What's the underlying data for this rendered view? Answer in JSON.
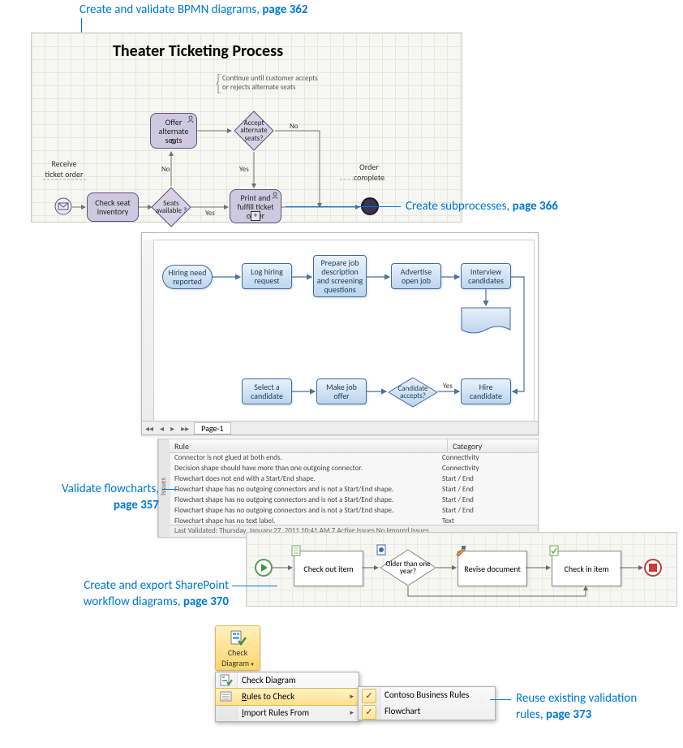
{
  "callout1": {
    "text": "Create and validate BPMN diagrams, ",
    "page": "page 362"
  },
  "callout2": {
    "text": "Create subprocesses, ",
    "page": "page 366"
  },
  "callout3": {
    "text": "Validate flowcharts,",
    "page": "page 357"
  },
  "callout4": {
    "text": "Create and export SharePoint",
    "text2": "workflow diagrams, ",
    "page": "page 370"
  },
  "callout5": {
    "text": "Reuse existing validation",
    "text2": "rules, ",
    "page": "page 373"
  },
  "bpmn": {
    "title": "Theater Ticketing Process",
    "note1": "Continue until customer accepts",
    "note2": "or rejects alternate seats",
    "receive": "Receive",
    "ticket_order": "ticket order",
    "check_seat": "Check seat inventory",
    "seats_available": "Seats available ?",
    "offer_alt": "Offer alternate seats",
    "accept_alt": "Accept alternate seats?",
    "print_fulfill": "Print and fulfill ticket order",
    "order_complete": "Order complete",
    "yes": "Yes",
    "no": "No",
    "bracket_color": "#888888",
    "task_fill": "#cec9e0",
    "task_stroke": "#5a5179",
    "diamond_fill": "#d6d2e4",
    "line_color": "#707070"
  },
  "fc": {
    "hiring_need": "Hiring need reported",
    "log_hiring": "Log hiring request",
    "prepare_job": "Prepare job description and screening questions",
    "advertise": "Advertise open job",
    "interview": "Interview candidates",
    "select": "Select a candidate",
    "make_offer": "Make job offer",
    "cand_accepts": "Candidate accepts?",
    "hire": "Hire candidate",
    "yes": "Yes",
    "page_tab": "Page-1",
    "box_fill1": "#e8f1fa",
    "box_fill2": "#bcd5ee",
    "box_stroke": "#3a6ea5",
    "arrow_color": "#4b729c"
  },
  "issues": {
    "vtab": "Issues",
    "col_rule": "Rule",
    "col_cat": "Category",
    "col_rule_width": 330,
    "rows": [
      {
        "r": "Connector is not glued at both ends.",
        "c": "Connectivity"
      },
      {
        "r": "Decision shape should have more than one outgoing connector.",
        "c": "Connectivity"
      },
      {
        "r": "Flowchart does not end with a Start/End shape.",
        "c": "Start / End"
      },
      {
        "r": "Flowchart shape has no outgoing connectors and is not a Start/End shape.",
        "c": "Start / End"
      },
      {
        "r": "Flowchart shape has no outgoing connectors and is not a Start/End shape.",
        "c": "Start / End"
      },
      {
        "r": "Flowchart shape has no outgoing connectors and is not a Start/End shape.",
        "c": "Start / End"
      },
      {
        "r": "Flowchart shape has no text label.",
        "c": "Text"
      }
    ],
    "status": "Last Validated: Thursday, January 27, 2011 10:41 AM    7 Active Issues    No Ignored Issues"
  },
  "sp": {
    "checkout": "Check out item",
    "older": "Older than one year?",
    "revise": "Revise document",
    "checkin": "Check in item",
    "arrow_color": "#6a6a6a"
  },
  "menu": {
    "bigbtn_line1": "Check",
    "bigbtn_line2": "Diagram",
    "item1": "Check Diagram",
    "item2": "Rules to Check",
    "item3": "Import Rules From",
    "sub1": "Contoso Business Rules",
    "sub2": "Flowchart"
  },
  "colors": {
    "callout": "#0078d4"
  }
}
